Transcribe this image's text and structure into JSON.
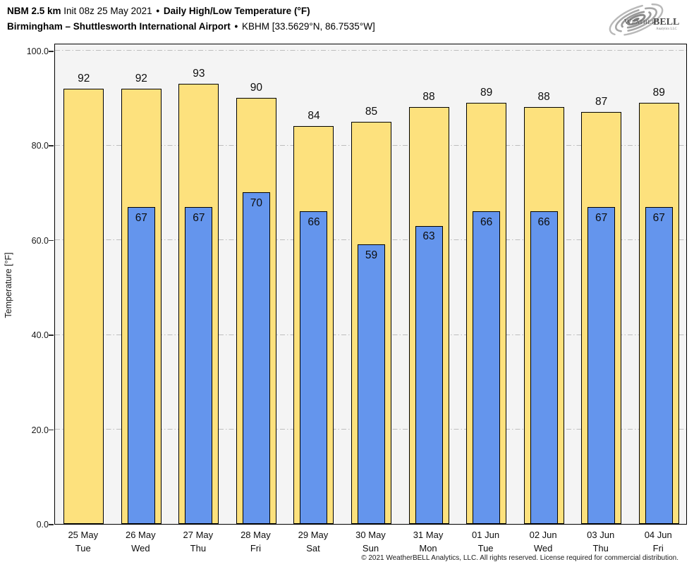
{
  "header": {
    "title_model": "NBM 2.5 km",
    "title_init": "Init 08z 25 May 2021",
    "title_sep": "•",
    "title_product": "Daily High/Low Temperature (°F)",
    "subtitle_station": "Birmingham – Shuttlesworth International Airport",
    "subtitle_sep": "•",
    "subtitle_id": "KBHM [33.5629°N, 86.7535°W]"
  },
  "logo": {
    "brand_weather": "Weather",
    "brand_bell": "BELL",
    "brand_sub": "Analytics LLC"
  },
  "footer": {
    "copyright": "© 2021 WeatherBELL Analytics, LLC. All rights reserved. License required for commercial distribution."
  },
  "colors": {
    "high_bar": "#FDE17D",
    "low_bar": "#6495ED",
    "plot_background": "#f4f4f4",
    "gridline": "#bdbdbd",
    "bar_border": "#000000"
  },
  "chart_data": {
    "type": "bar",
    "title": "Daily High/Low Temperature (°F)",
    "xlabel": "",
    "ylabel": "Temperature [°F]",
    "ylim": [
      0,
      101.6
    ],
    "yticks": [
      0,
      20,
      40,
      60,
      80,
      100
    ],
    "ytick_labels": [
      "0.0",
      "20.0",
      "40.0",
      "60.0",
      "80.0",
      "100.0"
    ],
    "grid": "horizontal dash-dot at 20/40/60/80/100",
    "legend": "none",
    "categories": [
      {
        "date": "25 May",
        "day": "Tue"
      },
      {
        "date": "26 May",
        "day": "Wed"
      },
      {
        "date": "27 May",
        "day": "Thu"
      },
      {
        "date": "28 May",
        "day": "Fri"
      },
      {
        "date": "29 May",
        "day": "Sat"
      },
      {
        "date": "30 May",
        "day": "Sun"
      },
      {
        "date": "31 May",
        "day": "Mon"
      },
      {
        "date": "01 Jun",
        "day": "Tue"
      },
      {
        "date": "02 Jun",
        "day": "Wed"
      },
      {
        "date": "03 Jun",
        "day": "Thu"
      },
      {
        "date": "04 Jun",
        "day": "Fri"
      }
    ],
    "series": [
      {
        "name": "High",
        "color": "#FDE17D",
        "values": [
          92,
          92,
          93,
          90,
          84,
          85,
          88,
          89,
          88,
          87,
          89
        ]
      },
      {
        "name": "Low",
        "color": "#6495ED",
        "values": [
          null,
          67,
          67,
          70,
          66,
          59,
          63,
          66,
          66,
          67,
          67
        ]
      }
    ]
  }
}
